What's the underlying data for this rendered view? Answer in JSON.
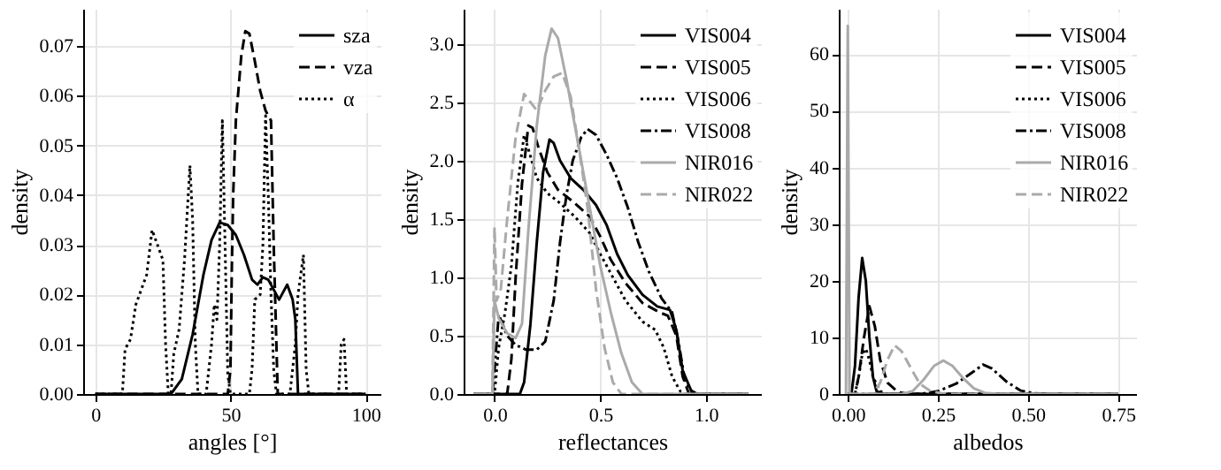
{
  "chart_data": [
    {
      "type": "line",
      "xlabel": "angles [°]",
      "ylabel": "density",
      "xlim": [
        -4.5,
        105.5
      ],
      "ylim": [
        0,
        0.0775
      ],
      "xticks": [
        0,
        50,
        100
      ],
      "yticks": [
        {
          "value": 0,
          "label": "0.00"
        },
        {
          "value": 0.01,
          "label": "0.01"
        },
        {
          "value": 0.02,
          "label": "0.02"
        },
        {
          "value": 0.03,
          "label": "0.03"
        },
        {
          "value": 0.04,
          "label": "0.04"
        },
        {
          "value": 0.05,
          "label": "0.05"
        },
        {
          "value": 0.06,
          "label": "0.06"
        },
        {
          "value": 0.07,
          "label": "0.07"
        }
      ],
      "grid": true,
      "legend": "top right",
      "series": [
        {
          "name": "sza",
          "color": "#000000",
          "line_style": "solid",
          "x": [
            0,
            28,
            32,
            36,
            40,
            43,
            46,
            49,
            52,
            55,
            58,
            60,
            62,
            64,
            66,
            68,
            70,
            71,
            73,
            74,
            75,
            100
          ],
          "values": [
            0,
            0,
            0.003,
            0.012,
            0.024,
            0.031,
            0.0345,
            0.034,
            0.032,
            0.028,
            0.023,
            0.022,
            0.0235,
            0.023,
            0.021,
            0.019,
            0.021,
            0.022,
            0.019,
            0.015,
            0,
            0
          ]
        },
        {
          "name": "vza",
          "color": "#000000",
          "line_style": "dashed",
          "x": [
            0,
            49,
            50,
            50.5,
            51,
            52,
            54,
            55.5,
            57,
            59,
            61,
            63,
            65,
            66,
            67.5,
            100
          ],
          "values": [
            0,
            0,
            0.005,
            0.025,
            0.04,
            0.055,
            0.068,
            0.073,
            0.0725,
            0.067,
            0.061,
            0.057,
            0.055,
            0.03,
            0,
            0
          ]
        },
        {
          "name": "α",
          "color": "#000000",
          "line_style": "dotted",
          "x": [
            0,
            10,
            11,
            13,
            15,
            17,
            19,
            21,
            23,
            25,
            26,
            27,
            28,
            29,
            31,
            33,
            35,
            36,
            37,
            38,
            41,
            43,
            44,
            45,
            46,
            47,
            48,
            49,
            50,
            57,
            58,
            59,
            61,
            62,
            63,
            64,
            65,
            66,
            67,
            72,
            74,
            75,
            76,
            77,
            78,
            79,
            90,
            91,
            92,
            93,
            100
          ],
          "values": [
            0,
            0,
            0.009,
            0.011,
            0.018,
            0.021,
            0.024,
            0.033,
            0.03,
            0.027,
            0.01,
            0,
            0,
            0.008,
            0.013,
            0.027,
            0.046,
            0.035,
            0.01,
            0,
            0,
            0.01,
            0.018,
            0.015,
            0.03,
            0.055,
            0.03,
            0.004,
            0,
            0,
            0.005,
            0.019,
            0.02,
            0.03,
            0.056,
            0.04,
            0.02,
            0.005,
            0,
            0,
            0.01,
            0.02,
            0.024,
            0.028,
            0.005,
            0,
            0,
            0.01,
            0.011,
            0,
            0
          ]
        }
      ]
    },
    {
      "type": "line",
      "xlabel": "reflectances",
      "ylabel": "density",
      "xlim": [
        -0.146,
        1.26
      ],
      "ylim": [
        0,
        3.3
      ],
      "xticks": [
        {
          "value": 0,
          "label": "0.0"
        },
        {
          "value": 0.5,
          "label": "0.5"
        },
        {
          "value": 1,
          "label": "1.0"
        }
      ],
      "yticks": [
        {
          "value": 0,
          "label": "0.0"
        },
        {
          "value": 0.5,
          "label": "0.5"
        },
        {
          "value": 1,
          "label": "1.0"
        },
        {
          "value": 1.5,
          "label": "1.5"
        },
        {
          "value": 2,
          "label": "2.0"
        },
        {
          "value": 2.5,
          "label": "2.5"
        },
        {
          "value": 3,
          "label": "3.0"
        }
      ],
      "grid": true,
      "legend": "top right",
      "series": [
        {
          "name": "VIS004",
          "color": "#000000",
          "line_style": "solid",
          "x": [
            -0.1,
            0.12,
            0.14,
            0.17,
            0.2,
            0.23,
            0.26,
            0.28,
            0.31,
            0.36,
            0.42,
            0.48,
            0.53,
            0.58,
            0.63,
            0.7,
            0.77,
            0.83,
            0.86,
            0.89,
            0.93,
            0.96,
            1.2
          ],
          "values": [
            0,
            0,
            0.1,
            0.6,
            1.3,
            1.9,
            2.18,
            2.15,
            2.0,
            1.85,
            1.75,
            1.62,
            1.45,
            1.2,
            1.02,
            0.85,
            0.75,
            0.72,
            0.55,
            0.2,
            0.03,
            0,
            0
          ]
        },
        {
          "name": "VIS005",
          "color": "#000000",
          "line_style": "dashed",
          "x": [
            -0.1,
            0.06,
            0.08,
            0.1,
            0.13,
            0.16,
            0.18,
            0.21,
            0.25,
            0.3,
            0.37,
            0.45,
            0.5,
            0.55,
            0.62,
            0.7,
            0.78,
            0.82,
            0.86,
            0.89,
            0.92,
            1.2
          ],
          "values": [
            0,
            0,
            0.3,
            1.0,
            1.8,
            2.3,
            2.28,
            2.1,
            1.9,
            1.75,
            1.65,
            1.52,
            1.35,
            1.15,
            0.95,
            0.78,
            0.7,
            0.67,
            0.5,
            0.15,
            0,
            0
          ]
        },
        {
          "name": "VIS006",
          "color": "#000000",
          "line_style": "dotted",
          "x": [
            -0.1,
            -0.01,
            0,
            0.02,
            0.05,
            0.08,
            0.11,
            0.14,
            0.16,
            0.2,
            0.25,
            0.3,
            0.38,
            0.45,
            0.5,
            0.56,
            0.62,
            0.7,
            0.76,
            0.8,
            0.84,
            0.88,
            0.9,
            1.2
          ],
          "values": [
            0,
            0,
            0,
            0.4,
            0.7,
            1.1,
            1.8,
            2.22,
            2.1,
            1.85,
            1.72,
            1.65,
            1.52,
            1.38,
            1.2,
            1.0,
            0.8,
            0.62,
            0.55,
            0.4,
            0.15,
            0.02,
            0,
            0
          ]
        },
        {
          "name": "VIS008",
          "color": "#000000",
          "line_style": "dashdot",
          "x": [
            -0.1,
            -0.01,
            0,
            0.02,
            0.06,
            0.1,
            0.15,
            0.2,
            0.24,
            0.28,
            0.31,
            0.34,
            0.37,
            0.41,
            0.44,
            0.48,
            0.53,
            0.58,
            0.63,
            0.68,
            0.73,
            0.79,
            0.84,
            0.87,
            0.9,
            0.94,
            1.2
          ],
          "values": [
            0,
            0,
            0.2,
            0.68,
            0.5,
            0.42,
            0.38,
            0.38,
            0.45,
            0.8,
            1.3,
            1.7,
            2.0,
            2.2,
            2.27,
            2.22,
            2.05,
            1.85,
            1.6,
            1.3,
            1.05,
            0.82,
            0.7,
            0.45,
            0.12,
            0,
            0
          ]
        },
        {
          "name": "NIR016",
          "color": "#aaaaaa",
          "line_style": "solid",
          "x": [
            -0.1,
            -0.01,
            0,
            0.02,
            0.06,
            0.1,
            0.13,
            0.16,
            0.2,
            0.24,
            0.27,
            0.3,
            0.34,
            0.38,
            0.42,
            0.46,
            0.5,
            0.55,
            0.6,
            0.65,
            0.7,
            1.2
          ],
          "values": [
            0,
            0,
            0.8,
            0.65,
            0.52,
            0.48,
            0.6,
            1.4,
            2.3,
            2.9,
            3.13,
            3.05,
            2.7,
            2.3,
            1.9,
            1.5,
            1.1,
            0.7,
            0.35,
            0.1,
            0,
            0
          ]
        },
        {
          "name": "NIR022",
          "color": "#aaaaaa",
          "line_style": "dashed",
          "x": [
            -0.1,
            -0.01,
            0,
            0.01,
            0.03,
            0.06,
            0.1,
            0.14,
            0.17,
            0.2,
            0.24,
            0.28,
            0.32,
            0.36,
            0.4,
            0.44,
            0.48,
            0.52,
            0.56,
            0.6,
            1.2
          ],
          "values": [
            0,
            0,
            1.43,
            0.8,
            0.9,
            1.5,
            2.2,
            2.57,
            2.5,
            2.43,
            2.6,
            2.72,
            2.75,
            2.55,
            2.1,
            1.6,
            0.9,
            0.4,
            0.1,
            0,
            0
          ]
        }
      ]
    },
    {
      "type": "line",
      "xlabel": "albedos",
      "ylabel": "density",
      "xlim": [
        -0.025,
        0.8
      ],
      "ylim": [
        0,
        68
      ],
      "xticks": [
        {
          "value": 0,
          "label": "0.00"
        },
        {
          "value": 0.25,
          "label": "0.25"
        },
        {
          "value": 0.5,
          "label": "0.50"
        },
        {
          "value": 0.75,
          "label": "0.75"
        }
      ],
      "yticks": [
        0,
        10,
        20,
        30,
        40,
        50,
        60
      ],
      "grid": true,
      "legend": "top right",
      "series": [
        {
          "name": "VIS004",
          "color": "#000000",
          "line_style": "solid",
          "x": [
            0,
            0.01,
            0.02,
            0.03,
            0.04,
            0.05,
            0.06,
            0.07,
            0.08,
            0.1,
            0.75
          ],
          "values": [
            0,
            0,
            5,
            17,
            24,
            20,
            10,
            3,
            0.5,
            0,
            0
          ]
        },
        {
          "name": "VIS005",
          "color": "#000000",
          "line_style": "dashed",
          "x": [
            0,
            0.02,
            0.03,
            0.045,
            0.06,
            0.075,
            0.09,
            0.11,
            0.14,
            0.17,
            0.75
          ],
          "values": [
            0,
            0,
            3,
            10,
            15.5,
            12,
            6,
            2,
            0.3,
            0,
            0
          ]
        },
        {
          "name": "VIS006",
          "color": "#000000",
          "line_style": "dotted",
          "x": [
            0,
            0.02,
            0.03,
            0.04,
            0.05,
            0.06,
            0.07,
            0.09,
            0.11,
            0.75
          ],
          "values": [
            0,
            0,
            3,
            7,
            8,
            6,
            3,
            0.5,
            0,
            0
          ]
        },
        {
          "name": "VIS008",
          "color": "#000000",
          "line_style": "dashdot",
          "x": [
            0,
            0.2,
            0.25,
            0.3,
            0.35,
            0.375,
            0.4,
            0.44,
            0.48,
            0.52,
            0.56,
            0.75
          ],
          "values": [
            0,
            0,
            0.5,
            1.8,
            4,
            5.2,
            4.5,
            2.2,
            0.6,
            0.1,
            0,
            0
          ]
        },
        {
          "name": "NIR016",
          "color": "#aaaaaa",
          "line_style": "solid",
          "x": [
            -0.005,
            0,
            0.005,
            0.15,
            0.18,
            0.21,
            0.24,
            0.265,
            0.29,
            0.32,
            0.35,
            0.38,
            0.42,
            0.75
          ],
          "values": [
            0,
            65,
            0,
            0,
            0.5,
            2.5,
            5,
            5.9,
            5,
            2.8,
            1,
            0.2,
            0,
            0
          ]
        },
        {
          "name": "NIR022",
          "color": "#aaaaaa",
          "line_style": "dashed",
          "x": [
            0,
            0.07,
            0.09,
            0.11,
            0.13,
            0.15,
            0.18,
            0.2,
            0.23,
            0.27,
            0.75
          ],
          "values": [
            0,
            0,
            2,
            6,
            8.6,
            7.5,
            4,
            1.8,
            0.5,
            0,
            0
          ]
        }
      ]
    }
  ]
}
